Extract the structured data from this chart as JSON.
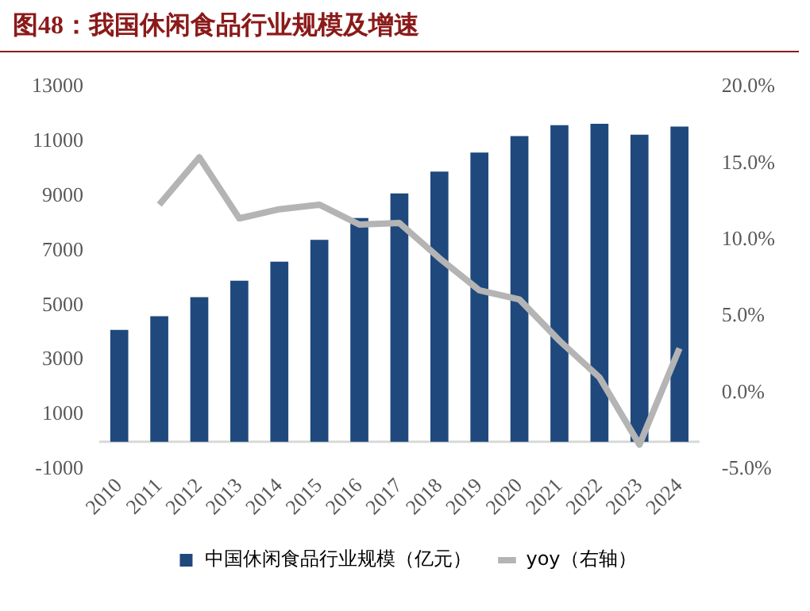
{
  "chart_data": {
    "type": "bar",
    "title": "图48：我国休闲食品行业规模及增速",
    "categories": [
      "2010",
      "2011",
      "2012",
      "2013",
      "2014",
      "2015",
      "2016",
      "2017",
      "2018",
      "2019",
      "2020",
      "2021",
      "2022",
      "2023",
      "2024"
    ],
    "series": [
      {
        "name": "中国休闲食品行业规模（亿元）",
        "color": "#1f497d",
        "values": [
          4100,
          4600,
          5300,
          5900,
          6600,
          7400,
          8200,
          9100,
          9900,
          10600,
          11200,
          11600,
          11650,
          11250,
          11550
        ]
      },
      {
        "name": "yoy（右轴）",
        "type": "line",
        "axis": "y2",
        "color": "#b4b4b4",
        "values": [
          null,
          12.3,
          15.4,
          11.4,
          12.0,
          12.3,
          11.0,
          11.1,
          8.8,
          6.7,
          6.1,
          3.4,
          1.0,
          -3.4,
          2.9
        ]
      }
    ],
    "ylim": [
      -1000,
      13000
    ],
    "yticks": [
      -1000,
      1000,
      3000,
      5000,
      7000,
      9000,
      11000,
      13000
    ],
    "y2lim": [
      -5,
      20
    ],
    "y2ticks": [
      {
        "value": -5,
        "label": "-5.0%"
      },
      {
        "value": 0,
        "label": "0.0%"
      },
      {
        "value": 5,
        "label": "5.0%"
      },
      {
        "value": 10,
        "label": "10.0%"
      },
      {
        "value": 15,
        "label": "15.0%"
      },
      {
        "value": 20,
        "label": "20.0%"
      }
    ],
    "legend": "bottom",
    "grid": false,
    "marker": "none",
    "line_style": "solid"
  }
}
